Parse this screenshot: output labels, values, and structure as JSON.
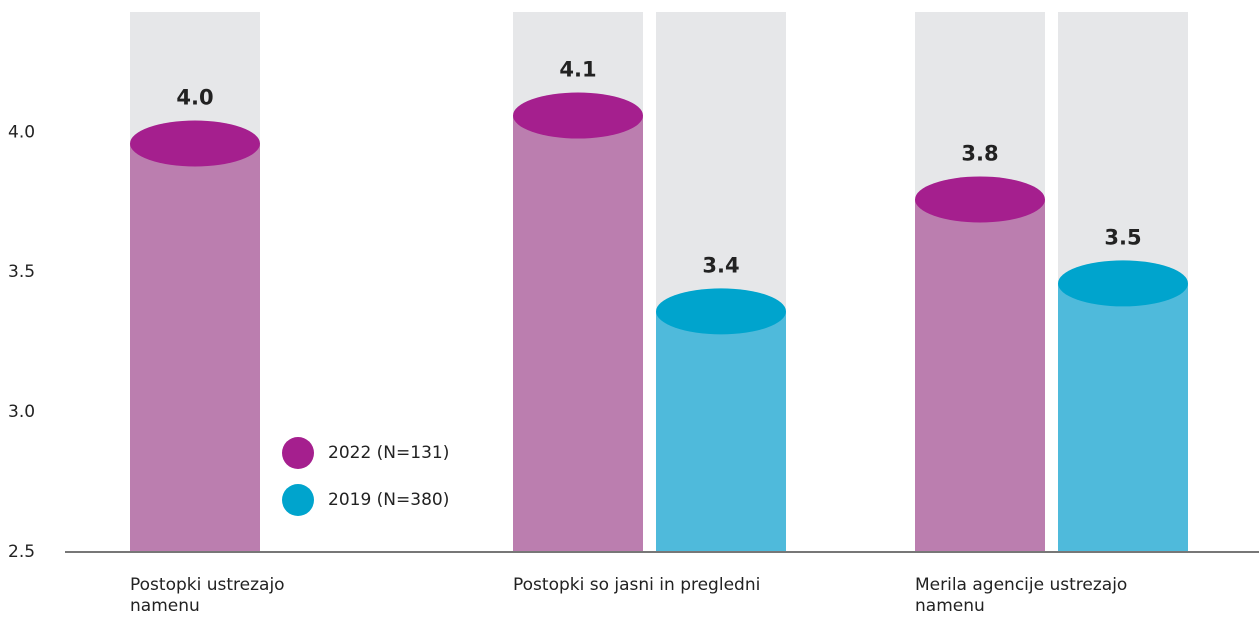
{
  "chart_data": {
    "type": "bar",
    "categories": [
      "Postopki ustrezajo namenu",
      "Postopki so jasni in pregledni",
      "Merila agencije ustrezajo namenu"
    ],
    "series": [
      {
        "name": "2022 (N=131)",
        "color": "#bb7eaf",
        "cap_color": "#a51f8e",
        "values": [
          3.96,
          4.06,
          3.76
        ],
        "value_labels": [
          "4.0",
          "4.1",
          "3.8"
        ]
      },
      {
        "name": "2019 (N=380)",
        "color": "#4fbadb",
        "cap_color": "#00a4cd",
        "values": [
          null,
          3.36,
          3.46
        ],
        "value_labels": [
          null,
          "3.4",
          "3.5"
        ]
      }
    ],
    "ylim": [
      2.5,
      4.43
    ],
    "yticks": [
      2.5,
      {
        "value": 3,
        "label": "3.0"
      },
      3.5,
      {
        "value": 4,
        "label": "4.0"
      }
    ],
    "background_bars": "#e6e7e9"
  }
}
